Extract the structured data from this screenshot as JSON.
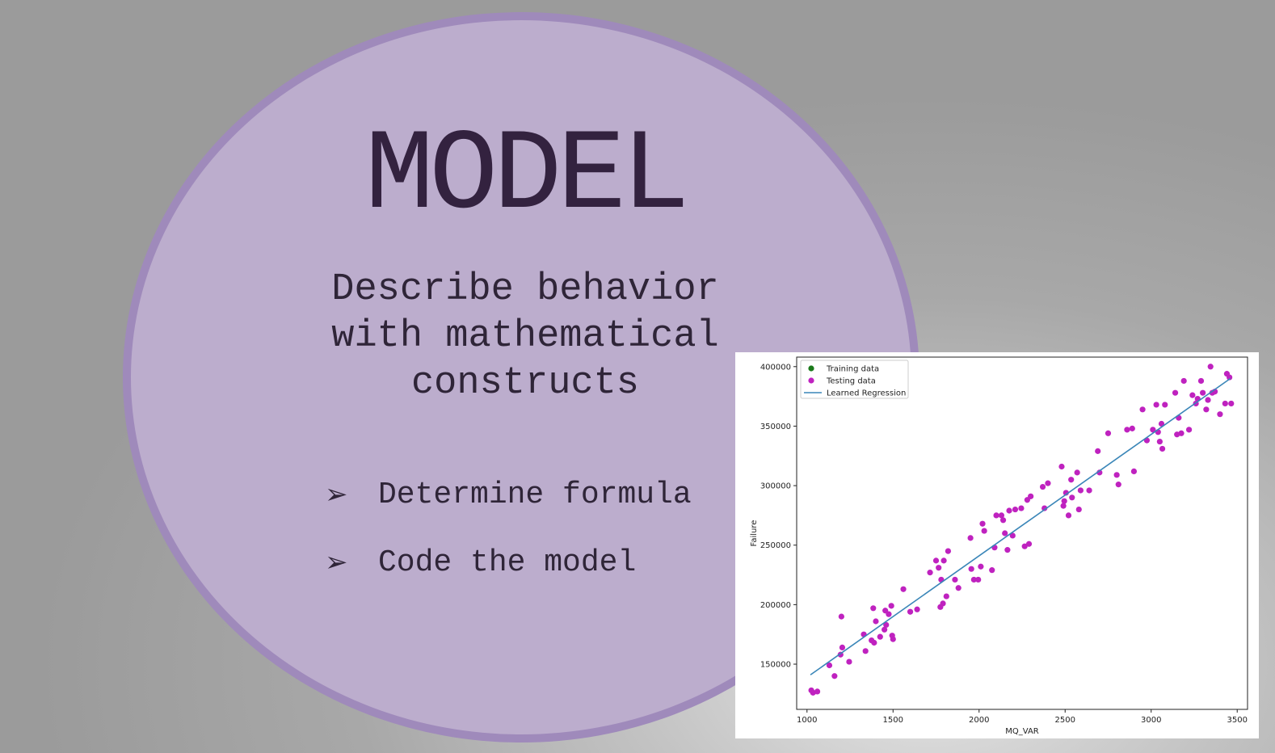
{
  "slide": {
    "title": "MODEL",
    "subtitle_lines": [
      "Describe behavior",
      "with mathematical",
      "constructs"
    ],
    "bullets": [
      {
        "icon": "arrowhead-bullet-icon",
        "symbol": "➢",
        "text": "Determine formula"
      },
      {
        "icon": "arrowhead-bullet-icon",
        "symbol": "➢",
        "text": "Code the model"
      }
    ]
  },
  "colors": {
    "oval_fill": "#bcadcd",
    "oval_border": "#9f8abb",
    "title_text": "#33223f",
    "training_marker": "#1a7a1a",
    "testing_marker": "#bf22bf",
    "regression_line": "#3a86b8"
  },
  "chart_data": {
    "type": "scatter",
    "xlabel": "MQ_VAR",
    "ylabel": "Failure",
    "xlim": [
      940,
      3560
    ],
    "ylim": [
      112000,
      408000
    ],
    "xticks": [
      1000,
      1500,
      2000,
      2500,
      3000,
      3500
    ],
    "yticks": [
      150000,
      200000,
      250000,
      300000,
      350000,
      400000
    ],
    "grid": false,
    "legend_position": "top-left",
    "legend": [
      "Training data",
      "Testing data",
      "Learned Regression"
    ],
    "series": [
      {
        "name": "Training data",
        "kind": "scatter",
        "points": []
      },
      {
        "name": "Testing data",
        "kind": "scatter",
        "points": [
          [
            1025,
            128000
          ],
          [
            1035,
            126000
          ],
          [
            1060,
            127000
          ],
          [
            1130,
            149000
          ],
          [
            1160,
            140000
          ],
          [
            1195,
            158000
          ],
          [
            1200,
            190000
          ],
          [
            1205,
            164000
          ],
          [
            1245,
            152000
          ],
          [
            1330,
            175000
          ],
          [
            1340,
            161000
          ],
          [
            1375,
            170000
          ],
          [
            1385,
            197000
          ],
          [
            1390,
            168000
          ],
          [
            1400,
            186000
          ],
          [
            1425,
            173000
          ],
          [
            1450,
            179000
          ],
          [
            1455,
            195000
          ],
          [
            1460,
            183000
          ],
          [
            1475,
            192000
          ],
          [
            1490,
            199000
          ],
          [
            1495,
            174000
          ],
          [
            1500,
            171000
          ],
          [
            1560,
            213000
          ],
          [
            1600,
            194000
          ],
          [
            1640,
            196000
          ],
          [
            1715,
            227000
          ],
          [
            1750,
            237000
          ],
          [
            1765,
            231000
          ],
          [
            1775,
            198000
          ],
          [
            1780,
            221000
          ],
          [
            1790,
            201000
          ],
          [
            1795,
            237000
          ],
          [
            1810,
            207000
          ],
          [
            1820,
            245000
          ],
          [
            1860,
            221000
          ],
          [
            1880,
            214000
          ],
          [
            1950,
            256000
          ],
          [
            1955,
            230000
          ],
          [
            1970,
            221000
          ],
          [
            1995,
            221000
          ],
          [
            2010,
            232000
          ],
          [
            2020,
            268000
          ],
          [
            2030,
            262000
          ],
          [
            2075,
            229000
          ],
          [
            2090,
            248000
          ],
          [
            2100,
            275000
          ],
          [
            2130,
            275000
          ],
          [
            2140,
            271000
          ],
          [
            2150,
            260000
          ],
          [
            2165,
            246000
          ],
          [
            2175,
            279000
          ],
          [
            2195,
            258000
          ],
          [
            2210,
            280000
          ],
          [
            2245,
            281000
          ],
          [
            2265,
            249000
          ],
          [
            2280,
            288000
          ],
          [
            2290,
            251000
          ],
          [
            2300,
            291000
          ],
          [
            2370,
            299000
          ],
          [
            2380,
            281000
          ],
          [
            2400,
            302000
          ],
          [
            2480,
            316000
          ],
          [
            2490,
            283000
          ],
          [
            2495,
            287000
          ],
          [
            2505,
            294000
          ],
          [
            2520,
            275000
          ],
          [
            2535,
            305000
          ],
          [
            2540,
            290000
          ],
          [
            2570,
            311000
          ],
          [
            2580,
            280000
          ],
          [
            2590,
            296000
          ],
          [
            2640,
            296000
          ],
          [
            2690,
            329000
          ],
          [
            2700,
            311000
          ],
          [
            2750,
            344000
          ],
          [
            2800,
            309000
          ],
          [
            2810,
            301000
          ],
          [
            2860,
            347000
          ],
          [
            2890,
            348000
          ],
          [
            2900,
            312000
          ],
          [
            2950,
            364000
          ],
          [
            2975,
            338000
          ],
          [
            3010,
            347000
          ],
          [
            3030,
            368000
          ],
          [
            3040,
            345000
          ],
          [
            3050,
            337000
          ],
          [
            3060,
            352000
          ],
          [
            3065,
            331000
          ],
          [
            3080,
            368000
          ],
          [
            3140,
            378000
          ],
          [
            3150,
            343000
          ],
          [
            3160,
            357000
          ],
          [
            3175,
            344000
          ],
          [
            3190,
            388000
          ],
          [
            3220,
            347000
          ],
          [
            3240,
            376000
          ],
          [
            3260,
            369000
          ],
          [
            3270,
            373000
          ],
          [
            3290,
            388000
          ],
          [
            3300,
            378000
          ],
          [
            3320,
            364000
          ],
          [
            3330,
            372000
          ],
          [
            3345,
            400000
          ],
          [
            3355,
            378000
          ],
          [
            3370,
            379000
          ],
          [
            3400,
            360000
          ],
          [
            3430,
            369000
          ],
          [
            3440,
            394000
          ],
          [
            3455,
            391000
          ],
          [
            3465,
            369000
          ]
        ]
      },
      {
        "name": "Learned Regression",
        "kind": "line",
        "points": [
          [
            1020,
            141000
          ],
          [
            3460,
            390000
          ]
        ]
      }
    ]
  }
}
